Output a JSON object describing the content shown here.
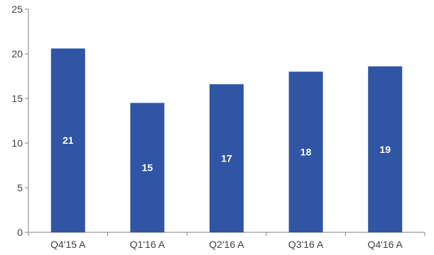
{
  "chart_data": {
    "type": "bar",
    "title": "",
    "xlabel": "",
    "ylabel": "",
    "categories": [
      "Q4'15 A",
      "Q1'16 A",
      "Q2'16 A",
      "Q3'16 A",
      "Q4'16 A"
    ],
    "values": [
      20.6,
      14.5,
      16.6,
      18.0,
      18.6
    ],
    "data_labels": [
      "21",
      "15",
      "17",
      "18",
      "19"
    ],
    "ylim": [
      0,
      25
    ],
    "yticks": [
      0,
      5,
      10,
      15,
      20,
      25
    ],
    "grid": false,
    "legend": "none",
    "colors": {
      "bar": "#3055a4",
      "axis": "#808080",
      "text": "#404040"
    }
  }
}
